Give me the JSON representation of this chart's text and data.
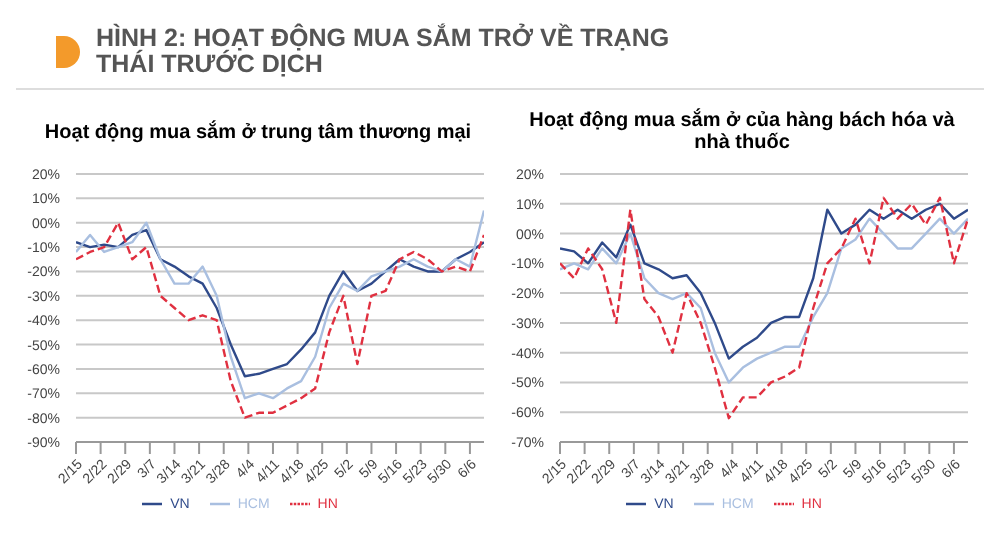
{
  "chart_data": [
    {
      "type": "line",
      "annotations": [
        "HÌNH 2: HOẠT ĐỘNG MUA SẮM TRỞ VỀ TRẠNG THÁI TRƯỚC DỊCH"
      ],
      "title": "Hoạt động mua sắm ở trung tâm thương mại",
      "x": [
        "--02-15",
        "--02-19",
        "--02-23",
        "--02-27",
        "--03-02",
        "--03-06",
        "--03-10",
        "--03-14",
        "--03-18",
        "--03-22",
        "--03-26",
        "--03-30",
        "--04-03",
        "--04-07",
        "--04-11",
        "--04-15",
        "--04-19",
        "--04-23",
        "--04-27",
        "--05-01",
        "--05-05",
        "--05-09",
        "--05-13",
        "--05-17",
        "--05-21",
        "--05-25",
        "--05-29",
        "--06-02",
        "--06-06",
        "--06-10"
      ],
      "series": [
        {
          "name": "VN",
          "color": "#2f4a8a",
          "line_style": "solid",
          "values": [
            -8,
            -10,
            -9,
            -10,
            -5,
            -3,
            -15,
            -18,
            -22,
            -25,
            -35,
            -50,
            -63,
            -62,
            -60,
            -58,
            -52,
            -45,
            -30,
            -20,
            -28,
            -25,
            -20,
            -15,
            -18,
            -20,
            -20,
            -15,
            -12,
            -8
          ]
        },
        {
          "name": "HCM",
          "color": "#a9bfe0",
          "line_style": "solid",
          "values": [
            -12,
            -5,
            -12,
            -10,
            -8,
            0,
            -15,
            -25,
            -25,
            -18,
            -30,
            -55,
            -72,
            -70,
            -72,
            -68,
            -65,
            -55,
            -35,
            -25,
            -28,
            -22,
            -20,
            -18,
            -15,
            -18,
            -20,
            -15,
            -18,
            5
          ]
        },
        {
          "name": "HN",
          "color": "#e03040",
          "line_style": "dashed",
          "values": [
            -15,
            -12,
            -10,
            0,
            -15,
            -10,
            -30,
            -35,
            -40,
            -38,
            -40,
            -65,
            -80,
            -78,
            -78,
            -75,
            -72,
            -68,
            -45,
            -30,
            -58,
            -30,
            -28,
            -15,
            -12,
            -15,
            -20,
            -18,
            -20,
            -5
          ]
        }
      ],
      "xlim": [
        "--02-15",
        "--06-10"
      ],
      "xticks": [
        {
          "value": "--02-15",
          "label": "2/15"
        },
        {
          "value": "--02-22",
          "label": "2/22"
        },
        {
          "value": "--02-29",
          "label": "2/29"
        },
        {
          "value": "--03-07",
          "label": "3/7"
        },
        {
          "value": "--03-14",
          "label": "3/14"
        },
        {
          "value": "--03-21",
          "label": "3/21"
        },
        {
          "value": "--03-28",
          "label": "3/28"
        },
        {
          "value": "--04-04",
          "label": "4/4"
        },
        {
          "value": "--04-11",
          "label": "4/11"
        },
        {
          "value": "--04-18",
          "label": "4/18"
        },
        {
          "value": "--04-25",
          "label": "4/25"
        },
        {
          "value": "--05-02",
          "label": "5/2"
        },
        {
          "value": "--05-09",
          "label": "5/9"
        },
        {
          "value": "--05-16",
          "label": "5/16"
        },
        {
          "value": "--05-23",
          "label": "5/23"
        },
        {
          "value": "--05-30",
          "label": "5/30"
        },
        {
          "value": "--06-06",
          "label": "6/6"
        }
      ],
      "ylim": [
        -90,
        20
      ],
      "yticks": [
        {
          "value": -90,
          "label": "-90%"
        },
        {
          "value": -80,
          "label": "-80%"
        },
        {
          "value": -70,
          "label": "-70%"
        },
        {
          "value": -60,
          "label": "-60%"
        },
        {
          "value": -50,
          "label": "-50%"
        },
        {
          "value": -40,
          "label": "-40%"
        },
        {
          "value": -30,
          "label": "-30%"
        },
        {
          "value": -20,
          "label": "-20%"
        },
        {
          "value": -10,
          "label": "-10%"
        },
        {
          "value": 0,
          "label": "00%"
        },
        {
          "value": 10,
          "label": "10%"
        },
        {
          "value": 20,
          "label": "20%"
        }
      ],
      "grid": "y",
      "legend": "bottom",
      "marker": "none"
    },
    {
      "type": "line",
      "title": "Hoạt động mua sắm ở của hàng bách hóa và nhà thuốc",
      "x": [
        "--02-15",
        "--02-19",
        "--02-23",
        "--02-27",
        "--03-02",
        "--03-06",
        "--03-10",
        "--03-14",
        "--03-18",
        "--03-22",
        "--03-26",
        "--03-30",
        "--04-03",
        "--04-07",
        "--04-11",
        "--04-15",
        "--04-19",
        "--04-23",
        "--04-27",
        "--05-01",
        "--05-05",
        "--05-09",
        "--05-13",
        "--05-17",
        "--05-21",
        "--05-25",
        "--05-29",
        "--06-02",
        "--06-06",
        "--06-10"
      ],
      "series": [
        {
          "name": "VN",
          "color": "#2f4a8a",
          "line_style": "solid",
          "values": [
            -5,
            -6,
            -10,
            -3,
            -8,
            3,
            -10,
            -12,
            -15,
            -14,
            -20,
            -30,
            -42,
            -38,
            -35,
            -30,
            -28,
            -28,
            -15,
            8,
            0,
            3,
            8,
            5,
            8,
            5,
            8,
            10,
            5,
            8
          ]
        },
        {
          "name": "HCM",
          "color": "#a9bfe0",
          "line_style": "solid",
          "values": [
            -12,
            -10,
            -12,
            -5,
            -10,
            0,
            -15,
            -20,
            -22,
            -20,
            -25,
            -40,
            -50,
            -45,
            -42,
            -40,
            -38,
            -38,
            -28,
            -20,
            -5,
            -2,
            5,
            0,
            -5,
            -5,
            0,
            5,
            0,
            5
          ]
        },
        {
          "name": "HN",
          "color": "#e03040",
          "line_style": "dashed",
          "values": [
            -10,
            -15,
            -5,
            -12,
            -30,
            8,
            -22,
            -28,
            -40,
            -20,
            -30,
            -45,
            -62,
            -55,
            -55,
            -50,
            -48,
            -45,
            -25,
            -10,
            -5,
            5,
            -10,
            12,
            5,
            10,
            3,
            12,
            -10,
            5
          ]
        }
      ],
      "xlim": [
        "--02-15",
        "--06-10"
      ],
      "xticks": [
        {
          "value": "--02-15",
          "label": "2/15"
        },
        {
          "value": "--02-22",
          "label": "2/22"
        },
        {
          "value": "--02-29",
          "label": "2/29"
        },
        {
          "value": "--03-07",
          "label": "3/7"
        },
        {
          "value": "--03-14",
          "label": "3/14"
        },
        {
          "value": "--03-21",
          "label": "3/21"
        },
        {
          "value": "--03-28",
          "label": "3/28"
        },
        {
          "value": "--04-04",
          "label": "4/4"
        },
        {
          "value": "--04-11",
          "label": "4/11"
        },
        {
          "value": "--04-18",
          "label": "4/18"
        },
        {
          "value": "--04-25",
          "label": "4/25"
        },
        {
          "value": "--05-02",
          "label": "5/2"
        },
        {
          "value": "--05-09",
          "label": "5/9"
        },
        {
          "value": "--05-16",
          "label": "5/16"
        },
        {
          "value": "--05-23",
          "label": "5/23"
        },
        {
          "value": "--05-30",
          "label": "5/30"
        },
        {
          "value": "--06-06",
          "label": "6/6"
        }
      ],
      "ylim": [
        -70,
        20
      ],
      "yticks": [
        {
          "value": -70,
          "label": "-70%"
        },
        {
          "value": -60,
          "label": "-60%"
        },
        {
          "value": -50,
          "label": "-50%"
        },
        {
          "value": -40,
          "label": "-40%"
        },
        {
          "value": -30,
          "label": "-30%"
        },
        {
          "value": -20,
          "label": "-20%"
        },
        {
          "value": -10,
          "label": "-10%"
        },
        {
          "value": 0,
          "label": "00%"
        },
        {
          "value": 10,
          "label": "10%"
        },
        {
          "value": 20,
          "label": "20%"
        }
      ],
      "grid": "y",
      "legend": "bottom",
      "marker": "none"
    }
  ]
}
